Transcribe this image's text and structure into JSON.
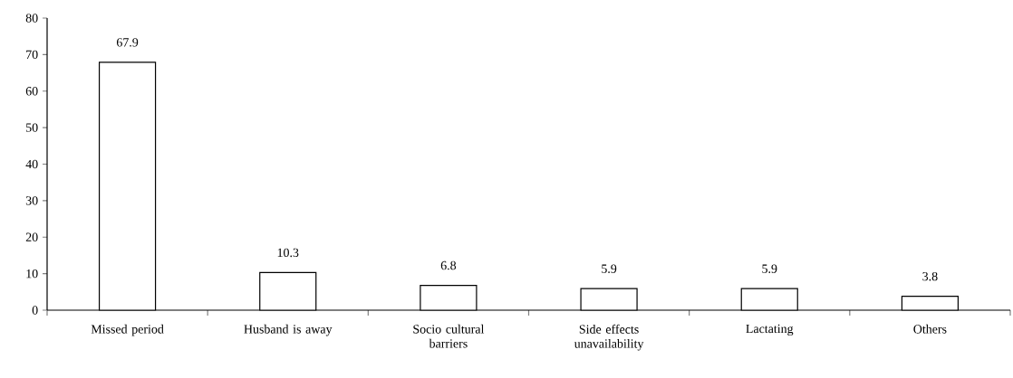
{
  "chart_data": {
    "type": "bar",
    "categories": [
      "Missed period",
      "Husband is away",
      "Socio cultural barriers",
      "Side effects unavailability",
      "Lactating",
      "Others"
    ],
    "values": [
      67.9,
      10.3,
      6.8,
      5.9,
      5.9,
      3.8
    ],
    "color": "#000000",
    "ylim": [
      0,
      80
    ],
    "yticks": [
      0,
      10,
      20,
      30,
      40,
      50,
      60,
      70,
      80
    ],
    "data_labels": true
  }
}
